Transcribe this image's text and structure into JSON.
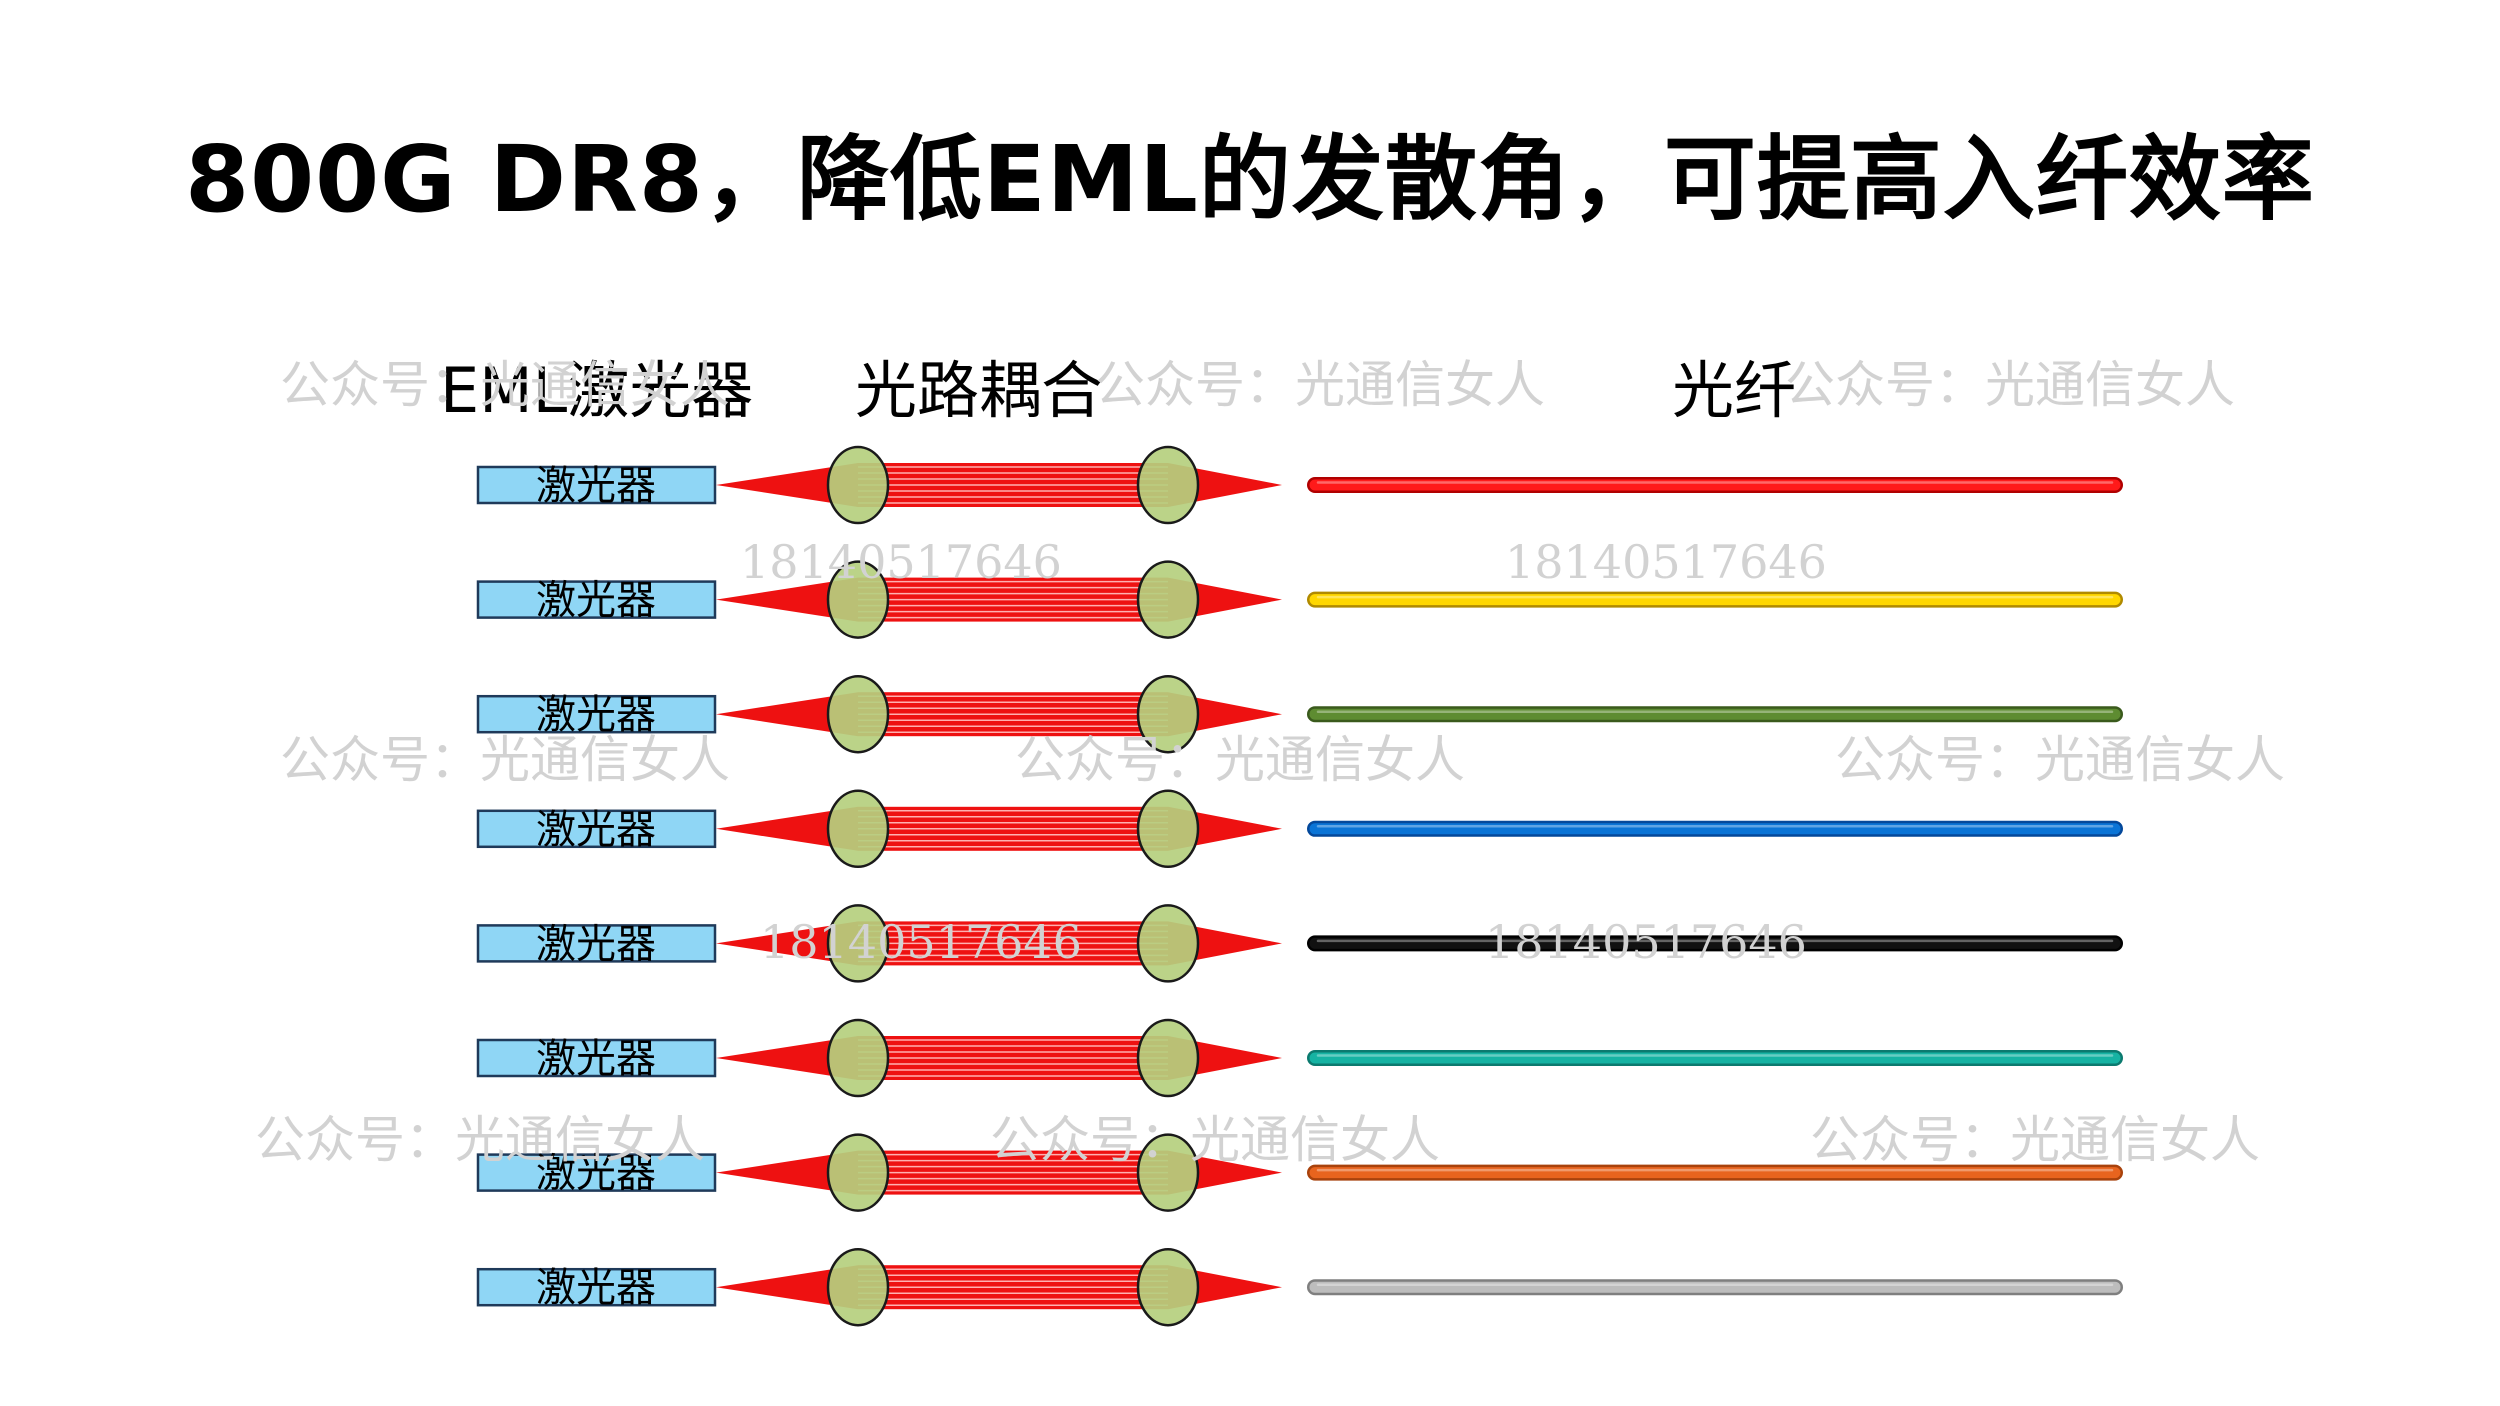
{
  "title": "800G DR8，降低EML的发散角，可提高入纤效率",
  "headers": {
    "laser": "EML激光器",
    "coupling": "光路耦合",
    "fiber": "光纤"
  },
  "laser_label": "激光器",
  "channels": [
    {
      "fiber_color": "#ff1a1a",
      "fiber_edge": "#b00000"
    },
    {
      "fiber_color": "#ffd700",
      "fiber_edge": "#b08a00"
    },
    {
      "fiber_color": "#5e8c31",
      "fiber_edge": "#3a5a1c"
    },
    {
      "fiber_color": "#0a74d6",
      "fiber_edge": "#04489a"
    },
    {
      "fiber_color": "#111111",
      "fiber_edge": "#000000"
    },
    {
      "fiber_color": "#16b3a3",
      "fiber_edge": "#0c7a6f"
    },
    {
      "fiber_color": "#e8641e",
      "fiber_edge": "#a8420c"
    },
    {
      "fiber_color": "#bdbdbd",
      "fiber_edge": "#7f7f7f"
    }
  ],
  "watermarks": {
    "account": "公众号：光通信女人",
    "phone": "18140517646"
  },
  "colors": {
    "laser_fill": "#8fd6f5",
    "laser_edge": "#1f3a5a",
    "beam": "#ee1111",
    "lens_fill": "#b5cf7e",
    "lens_edge": "#1a1a1a"
  }
}
